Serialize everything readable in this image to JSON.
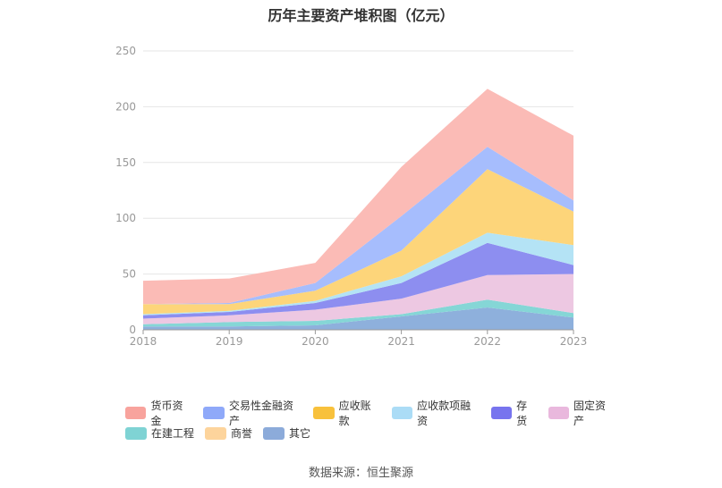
{
  "chart_data": {
    "type": "area",
    "title": "历年主要资产堆积图（亿元）",
    "x": [
      "2018",
      "2019",
      "2020",
      "2021",
      "2022",
      "2023"
    ],
    "ylim": [
      0,
      250
    ],
    "yticks": [
      "0",
      "50",
      "100",
      "150",
      "200",
      "250"
    ],
    "stacked": true,
    "grid": true,
    "legend_position": "bottom",
    "series": [
      {
        "name": "其它",
        "color": "#8eb0dc",
        "values": [
          3,
          3,
          4,
          12,
          20,
          11
        ]
      },
      {
        "name": "商誉",
        "color": "#fdd49c",
        "values": [
          0,
          0,
          0,
          0,
          0,
          0
        ]
      },
      {
        "name": "在建工程",
        "color": "#85d6d6",
        "values": [
          2,
          4,
          4,
          2,
          7,
          4
        ]
      },
      {
        "name": "固定资产",
        "color": "#edc8e2",
        "values": [
          5,
          6,
          10,
          14,
          22,
          35
        ]
      },
      {
        "name": "存货",
        "color": "#8d8ef0",
        "values": [
          3,
          3,
          6,
          14,
          29,
          8
        ]
      },
      {
        "name": "应收款项融资",
        "color": "#b4e3f5",
        "values": [
          1,
          1,
          2,
          6,
          9,
          18
        ]
      },
      {
        "name": "应收账款",
        "color": "#fdd57a",
        "values": [
          9,
          6,
          9,
          23,
          57,
          30
        ]
      },
      {
        "name": "交易性金融资产",
        "color": "#a6bdfd",
        "values": [
          0,
          1,
          7,
          31,
          20,
          10
        ]
      },
      {
        "name": "货币资金",
        "color": "#fbbbb6",
        "values": [
          21,
          22,
          18,
          44,
          52,
          58
        ]
      }
    ]
  },
  "legend": {
    "row1": [
      {
        "name": "货币资金",
        "color": "#f8a39d"
      },
      {
        "name": "交易性金融资产",
        "color": "#8fa9f9"
      },
      {
        "name": "应收账款",
        "color": "#f8c13c"
      },
      {
        "name": "应收款项融资",
        "color": "#abdcf6"
      },
      {
        "name": "存货",
        "color": "#7774ee"
      },
      {
        "name": "固定资产",
        "color": "#e9b8dd"
      }
    ],
    "row2": [
      {
        "name": "在建工程",
        "color": "#7fd3d4"
      },
      {
        "name": "商誉",
        "color": "#fdd49c"
      },
      {
        "name": "其它",
        "color": "#8cabda"
      }
    ]
  },
  "source": "数据来源：恒生聚源"
}
